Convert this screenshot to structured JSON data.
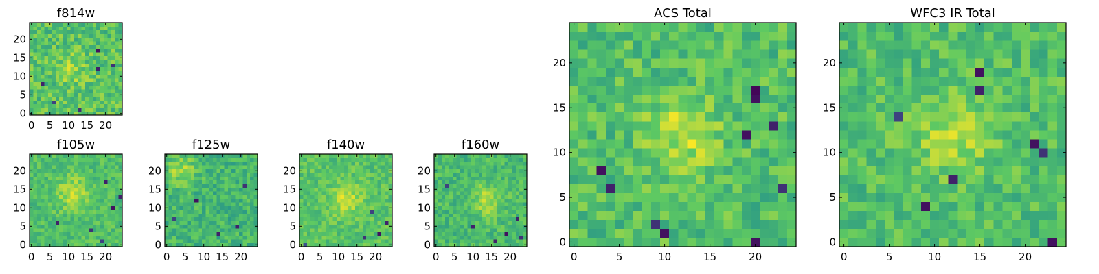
{
  "figure": {
    "background": "#ffffff"
  },
  "colormap": {
    "name": "viridis",
    "stops": [
      "#440154",
      "#3b528b",
      "#21918c",
      "#5ec962",
      "#fde725"
    ]
  },
  "chart_data": [
    {
      "type": "heatmap",
      "id": "f814w",
      "title": "f814w",
      "grid_size": 25,
      "xlim": [
        -0.5,
        24.5
      ],
      "ylim": [
        -0.5,
        24.5
      ],
      "xticks": [
        0,
        5,
        10,
        15,
        20
      ],
      "yticks": [
        0,
        5,
        10,
        15,
        20
      ],
      "xtick_labels": [
        "0",
        "5",
        "10",
        "15",
        "20"
      ],
      "ytick_labels": [
        "0",
        "5",
        "10",
        "15",
        "20"
      ],
      "value_range": [
        0,
        1
      ],
      "mean": 0.72,
      "noise": 0.14,
      "blob": [
        11,
        12,
        0.12
      ],
      "low_pixels": [
        [
          18,
          17,
          0.05
        ],
        [
          18,
          12,
          0.1
        ],
        [
          3,
          8,
          0.1
        ],
        [
          13,
          1,
          0.15
        ],
        [
          6,
          3,
          0.2
        ],
        [
          22,
          13,
          0.15
        ]
      ]
    },
    {
      "type": "heatmap",
      "id": "f105w",
      "title": "f105w",
      "grid_size": 25,
      "xlim": [
        -0.5,
        24.5
      ],
      "ylim": [
        -0.5,
        24.5
      ],
      "xticks": [
        0,
        5,
        10,
        15,
        20
      ],
      "yticks": [
        0,
        5,
        10,
        15,
        20
      ],
      "xtick_labels": [
        "0",
        "5",
        "10",
        "15",
        "20"
      ],
      "ytick_labels": [
        "0",
        "5",
        "10",
        "15",
        "20"
      ],
      "value_range": [
        0,
        1
      ],
      "mean": 0.7,
      "noise": 0.1,
      "blob": [
        11,
        14,
        0.2
      ],
      "low_pixels": [
        [
          20,
          17,
          0.1
        ],
        [
          22,
          10,
          0.05
        ],
        [
          7,
          6,
          0.1
        ],
        [
          16,
          4,
          0.15
        ],
        [
          24,
          13,
          0.1
        ],
        [
          19,
          1,
          0.2
        ]
      ]
    },
    {
      "type": "heatmap",
      "id": "f125w",
      "title": "f125w",
      "grid_size": 25,
      "xlim": [
        -0.5,
        24.5
      ],
      "ylim": [
        -0.5,
        24.5
      ],
      "xticks": [
        0,
        5,
        10,
        15,
        20
      ],
      "yticks": [
        0,
        5,
        10,
        15,
        20
      ],
      "xtick_labels": [
        "0",
        "5",
        "10",
        "15",
        "20"
      ],
      "ytick_labels": [
        "0",
        "5",
        "10",
        "15",
        "20"
      ],
      "value_range": [
        0,
        1
      ],
      "mean": 0.66,
      "noise": 0.12,
      "blob": [
        4,
        20,
        0.18
      ],
      "low_pixels": [
        [
          8,
          12,
          0.05
        ],
        [
          19,
          5,
          0.1
        ],
        [
          14,
          3,
          0.1
        ],
        [
          2,
          7,
          0.2
        ],
        [
          21,
          16,
          0.15
        ]
      ]
    },
    {
      "type": "heatmap",
      "id": "f140w",
      "title": "f140w",
      "grid_size": 25,
      "xlim": [
        -0.5,
        24.5
      ],
      "ylim": [
        -0.5,
        24.5
      ],
      "xticks": [
        0,
        5,
        10,
        15,
        20
      ],
      "yticks": [
        0,
        5,
        10,
        15,
        20
      ],
      "xtick_labels": [
        "0",
        "5",
        "10",
        "15",
        "20"
      ],
      "ytick_labels": [
        "0",
        "5",
        "10",
        "15",
        "20"
      ],
      "value_range": [
        0,
        1
      ],
      "mean": 0.72,
      "noise": 0.1,
      "blob": [
        12,
        12,
        0.2
      ],
      "low_pixels": [
        [
          21,
          3,
          0.05
        ],
        [
          23,
          6,
          0.1
        ],
        [
          17,
          2,
          0.15
        ],
        [
          19,
          9,
          0.2
        ],
        [
          1,
          0,
          0.25
        ]
      ]
    },
    {
      "type": "heatmap",
      "id": "f160w",
      "title": "f160w",
      "grid_size": 25,
      "xlim": [
        -0.5,
        24.5
      ],
      "ylim": [
        -0.5,
        24.5
      ],
      "xticks": [
        0,
        5,
        10,
        15,
        20
      ],
      "yticks": [
        0,
        5,
        10,
        15,
        20
      ],
      "xtick_labels": [
        "0",
        "5",
        "10",
        "15",
        "20"
      ],
      "ytick_labels": [
        "0",
        "5",
        "10",
        "15",
        "20"
      ],
      "value_range": [
        0,
        1
      ],
      "mean": 0.68,
      "noise": 0.11,
      "blob": [
        14,
        12,
        0.2
      ],
      "low_pixels": [
        [
          19,
          3,
          0.05
        ],
        [
          22,
          7,
          0.1
        ],
        [
          10,
          5,
          0.1
        ],
        [
          23,
          2,
          0.15
        ],
        [
          16,
          1,
          0.1
        ],
        [
          3,
          16,
          0.2
        ]
      ]
    },
    {
      "type": "heatmap",
      "id": "acs-total",
      "title": "ACS Total",
      "grid_size": 25,
      "xlim": [
        -0.5,
        24.5
      ],
      "ylim": [
        -0.5,
        24.5
      ],
      "xticks": [
        0,
        5,
        10,
        15,
        20
      ],
      "yticks": [
        0,
        5,
        10,
        15,
        20
      ],
      "xtick_labels": [
        "0",
        "5",
        "10",
        "15",
        "20"
      ],
      "ytick_labels": [
        "0",
        "5",
        "10",
        "15",
        "20"
      ],
      "value_range": [
        0,
        1
      ],
      "mean": 0.7,
      "noise": 0.13,
      "blob": [
        12,
        12,
        0.2
      ],
      "low_pixels": [
        [
          20,
          17,
          0.02
        ],
        [
          20,
          16,
          0.05
        ],
        [
          19,
          12,
          0.05
        ],
        [
          3,
          8,
          0.05
        ],
        [
          4,
          6,
          0.1
        ],
        [
          10,
          1,
          0.05
        ],
        [
          20,
          0,
          0.05
        ],
        [
          22,
          13,
          0.1
        ],
        [
          9,
          2,
          0.15
        ],
        [
          23,
          6,
          0.15
        ]
      ]
    },
    {
      "type": "heatmap",
      "id": "wfc3-ir-total",
      "title": "WFC3 IR Total",
      "grid_size": 25,
      "xlim": [
        -0.5,
        24.5
      ],
      "ylim": [
        -0.5,
        24.5
      ],
      "xticks": [
        0,
        5,
        10,
        15,
        20
      ],
      "yticks": [
        0,
        5,
        10,
        15,
        20
      ],
      "xtick_labels": [
        "0",
        "5",
        "10",
        "15",
        "20"
      ],
      "ytick_labels": [
        "0",
        "5",
        "10",
        "15",
        "20"
      ],
      "value_range": [
        0,
        1
      ],
      "mean": 0.7,
      "noise": 0.12,
      "blob": [
        12,
        12,
        0.2
      ],
      "low_pixels": [
        [
          15,
          19,
          0.05
        ],
        [
          15,
          17,
          0.1
        ],
        [
          21,
          11,
          0.05
        ],
        [
          12,
          7,
          0.1
        ],
        [
          9,
          4,
          0.05
        ],
        [
          23,
          0,
          0.05
        ],
        [
          22,
          10,
          0.15
        ],
        [
          6,
          14,
          0.2
        ]
      ]
    }
  ]
}
